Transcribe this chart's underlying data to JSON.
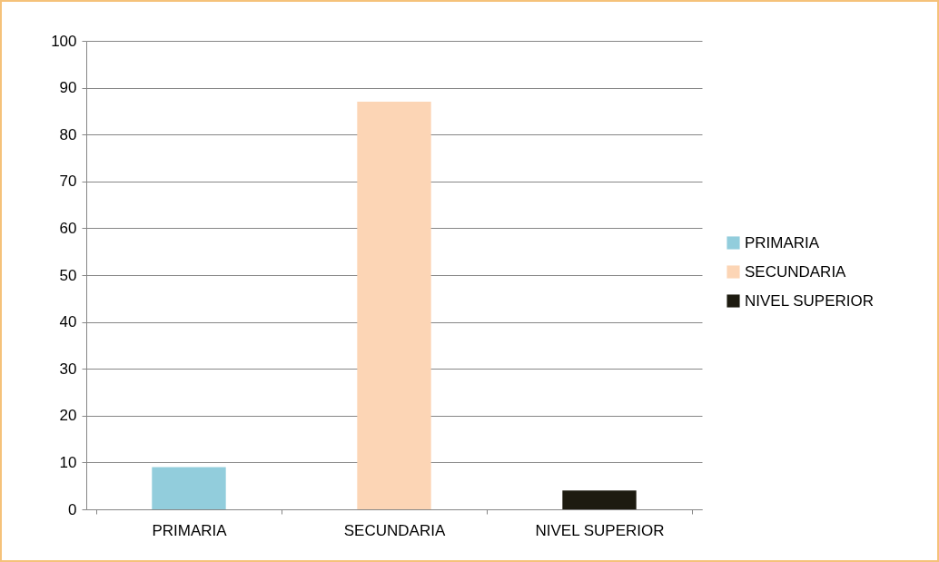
{
  "chart_data": {
    "type": "bar",
    "categories": [
      "PRIMARIA",
      "SECUNDARIA",
      "NIVEL SUPERIOR"
    ],
    "series": [
      {
        "name": "PRIMARIA",
        "color": "#92cddc",
        "values": [
          9,
          null,
          null
        ]
      },
      {
        "name": "SECUNDARIA",
        "color": "#fcd5b5",
        "values": [
          null,
          87,
          null
        ]
      },
      {
        "name": "NIVEL SUPERIOR",
        "color": "#1d1b10",
        "values": [
          null,
          null,
          4
        ]
      }
    ],
    "ylim": [
      0,
      100
    ],
    "yticks": [
      0,
      10,
      20,
      30,
      40,
      50,
      60,
      70,
      80,
      90,
      100
    ],
    "grid": "y",
    "legend": "right"
  }
}
